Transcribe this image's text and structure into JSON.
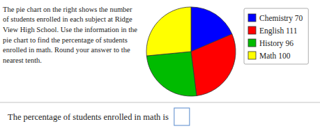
{
  "chart_data": {
    "type": "pie",
    "categories": [
      "Chemistry 70",
      "English 111",
      "History 96",
      "Math 100"
    ],
    "values": [
      70,
      111,
      96,
      100
    ],
    "colors": [
      "#0000FF",
      "#FF0000",
      "#00BB00",
      "#FFFF00"
    ],
    "legend": "right",
    "annotations": [
      "The pie chart on the right shows the number\nof students enrolled in each subject at Ridge\nView High School.  Use the information in the\npie chart to find the percentage of students\nenrolled in math.  Round your answer to the\nnearest tenth.",
      "The percentage of students enrolled in math is"
    ]
  }
}
